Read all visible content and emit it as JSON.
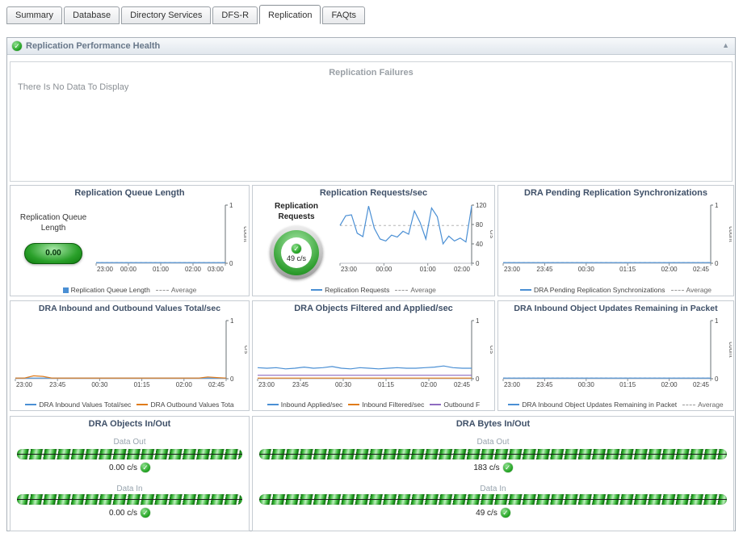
{
  "tabs": {
    "active": "Replication",
    "items": [
      {
        "label": "Summary"
      },
      {
        "label": "Database"
      },
      {
        "label": "Directory Services"
      },
      {
        "label": "DFS-R"
      },
      {
        "label": "Replication"
      },
      {
        "label": "FAQts"
      }
    ]
  },
  "panel": {
    "title": "Replication Performance Health"
  },
  "failures": {
    "title": "Replication Failures",
    "message": "There Is No Data To Display"
  },
  "gauges": {
    "queue": {
      "label": "Replication Queue Length",
      "value": "0.00"
    },
    "requests": {
      "label": "Replication Requests",
      "value": "49 c/s"
    }
  },
  "charts": {
    "queue_length": {
      "title": "Replication Queue Length",
      "chart_data": {
        "type": "line",
        "x_ticks": [
          "23:00",
          "00:00",
          "01:00",
          "02:00",
          "03:00"
        ],
        "ylim": [
          0,
          1
        ],
        "y_ticks": [
          0,
          1
        ],
        "y_unit": "count",
        "average": 0,
        "series": [
          {
            "name": "Replication Queue Length",
            "color": "#4a8fd4",
            "values": [
              0,
              0,
              0,
              0,
              0,
              0,
              0,
              0,
              0,
              0,
              0,
              0,
              0
            ]
          }
        ]
      },
      "legend": [
        {
          "label": "Replication Queue Length",
          "color": "#4a8fd4",
          "marker": "square"
        },
        {
          "label": "Average",
          "marker": "dash"
        }
      ]
    },
    "requests": {
      "title": "Replication Requests/sec",
      "chart_data": {
        "type": "line",
        "x_ticks": [
          "23:00",
          "00:00",
          "01:00",
          "02:00"
        ],
        "ylim": [
          0,
          120
        ],
        "y_ticks": [
          0,
          40,
          80,
          120
        ],
        "y_unit": "c/s",
        "average": 78,
        "series": [
          {
            "name": "Replication Requests",
            "color": "#4a8fd4",
            "values": [
              78,
              98,
              100,
              62,
              55,
              118,
              72,
              50,
              46,
              58,
              54,
              66,
              60,
              108,
              84,
              50,
              114,
              96,
              40,
              56,
              46,
              52,
              44,
              118
            ]
          }
        ]
      },
      "legend": [
        {
          "label": "Replication Requests",
          "color": "#4a8fd4",
          "marker": "line"
        },
        {
          "label": "Average",
          "marker": "dash"
        }
      ]
    },
    "pending_sync": {
      "title": "DRA Pending Replication Synchronizations",
      "chart_data": {
        "type": "line",
        "x_ticks": [
          "23:00",
          "23:45",
          "00:30",
          "01:15",
          "02:00",
          "02:45"
        ],
        "ylim": [
          0,
          1
        ],
        "y_ticks": [
          0,
          1
        ],
        "y_unit": "count",
        "average": 0,
        "series": [
          {
            "name": "DRA Pending Replication Synchronizations",
            "color": "#4a8fd4",
            "values": [
              0,
              0,
              0,
              0,
              0,
              0,
              0,
              0,
              0,
              0,
              0,
              0,
              0
            ]
          }
        ]
      },
      "legend": [
        {
          "label": "DRA Pending Replication Synchronizations",
          "color": "#4a8fd4",
          "marker": "line"
        },
        {
          "label": "Average",
          "marker": "dash"
        }
      ]
    },
    "inbound_outbound": {
      "title": "DRA Inbound and Outbound Values Total/sec",
      "chart_data": {
        "type": "line",
        "x_ticks": [
          "23:00",
          "23:45",
          "00:30",
          "01:15",
          "02:00",
          "02:45"
        ],
        "ylim": [
          0,
          1
        ],
        "y_ticks": [
          0,
          1
        ],
        "y_unit": "c/s",
        "series": [
          {
            "name": "DRA Inbound Values Total/sec",
            "color": "#4a8fd4",
            "values": [
              0,
              0,
              0,
              0,
              0,
              0,
              0,
              0,
              0,
              0,
              0,
              0,
              0,
              0,
              0,
              0,
              0,
              0,
              0,
              0,
              0,
              0,
              0,
              0
            ]
          },
          {
            "name": "DRA Outbound Values Total/sec",
            "color": "#e07b1a",
            "values": [
              0,
              0,
              0.05,
              0.04,
              0.01,
              0,
              0,
              0,
              0,
              0,
              0,
              0,
              0,
              0,
              0,
              0,
              0,
              0,
              0,
              0,
              0,
              0.03,
              0.02,
              0
            ]
          }
        ]
      },
      "legend": [
        {
          "label": "DRA Inbound Values Total/sec",
          "color": "#4a8fd4",
          "marker": "line"
        },
        {
          "label": "DRA Outbound Values Tota",
          "color": "#e07b1a",
          "marker": "line"
        }
      ]
    },
    "filtered_applied": {
      "title": "DRA Objects Filtered and Applied/sec",
      "chart_data": {
        "type": "line",
        "x_ticks": [
          "23:00",
          "23:45",
          "00:30",
          "01:15",
          "02:00",
          "02:45"
        ],
        "ylim": [
          0,
          1
        ],
        "y_ticks": [
          0,
          1
        ],
        "y_unit": "c/s",
        "series": [
          {
            "name": "Inbound Applied/sec",
            "color": "#4a8fd4",
            "values": [
              0.19,
              0.18,
              0.19,
              0.17,
              0.18,
              0.2,
              0.18,
              0.19,
              0.21,
              0.18,
              0.17,
              0.19,
              0.18,
              0.17,
              0.18,
              0.19,
              0.18,
              0.18,
              0.19,
              0.2,
              0.22,
              0.19,
              0.18,
              0.18
            ]
          },
          {
            "name": "Inbound Filtered/sec",
            "color": "#e07b1a",
            "values": [
              0,
              0,
              0,
              0,
              0,
              0,
              0,
              0,
              0,
              0,
              0,
              0,
              0,
              0,
              0,
              0,
              0,
              0,
              0,
              0,
              0,
              0,
              0,
              0
            ]
          },
          {
            "name": "Outbound Filtered/sec",
            "color": "#8e6bc0",
            "values": [
              0.06,
              0.06,
              0.06,
              0.06,
              0.06,
              0.06,
              0.06,
              0.06,
              0.06,
              0.06,
              0.06,
              0.06,
              0.06,
              0.06,
              0.06,
              0.06,
              0.06,
              0.06,
              0.06,
              0.06,
              0.06,
              0.06,
              0.06,
              0.06
            ]
          }
        ]
      },
      "legend": [
        {
          "label": "Inbound Applied/sec",
          "color": "#4a8fd4",
          "marker": "line"
        },
        {
          "label": "Inbound Filtered/sec",
          "color": "#e07b1a",
          "marker": "line"
        },
        {
          "label": "Outbound F",
          "color": "#8e6bc0",
          "marker": "line"
        }
      ]
    },
    "updates_remaining": {
      "title": "DRA Inbound Object Updates Remaining in Packet",
      "chart_data": {
        "type": "line",
        "x_ticks": [
          "23:00",
          "23:45",
          "00:30",
          "01:15",
          "02:00",
          "02:45"
        ],
        "ylim": [
          0,
          1
        ],
        "y_ticks": [
          0,
          1
        ],
        "y_unit": "count",
        "average": 0,
        "series": [
          {
            "name": "DRA Inbound Object Updates Remaining in Packet",
            "color": "#4a8fd4",
            "values": [
              0,
              0,
              0,
              0,
              0,
              0,
              0,
              0,
              0,
              0,
              0,
              0,
              0
            ]
          }
        ]
      },
      "legend": [
        {
          "label": "DRA Inbound Object Updates Remaining in Packet",
          "color": "#4a8fd4",
          "marker": "line"
        },
        {
          "label": "Average",
          "marker": "dash"
        }
      ]
    }
  },
  "flows": {
    "objects": {
      "title": "DRA Objects In/Out",
      "out_label": "Data Out",
      "out_value": "0.00 c/s",
      "in_label": "Data In",
      "in_value": "0.00 c/s"
    },
    "bytes": {
      "title": "DRA Bytes In/Out",
      "out_label": "Data Out",
      "out_value": "183 c/s",
      "in_label": "Data In",
      "in_value": "49 c/s"
    }
  },
  "colors": {
    "series_blue": "#4a8fd4",
    "series_orange": "#e07b1a",
    "series_purple": "#8e6bc0",
    "gauge_green": "#2aa02a",
    "title_slate": "#3f5068"
  }
}
